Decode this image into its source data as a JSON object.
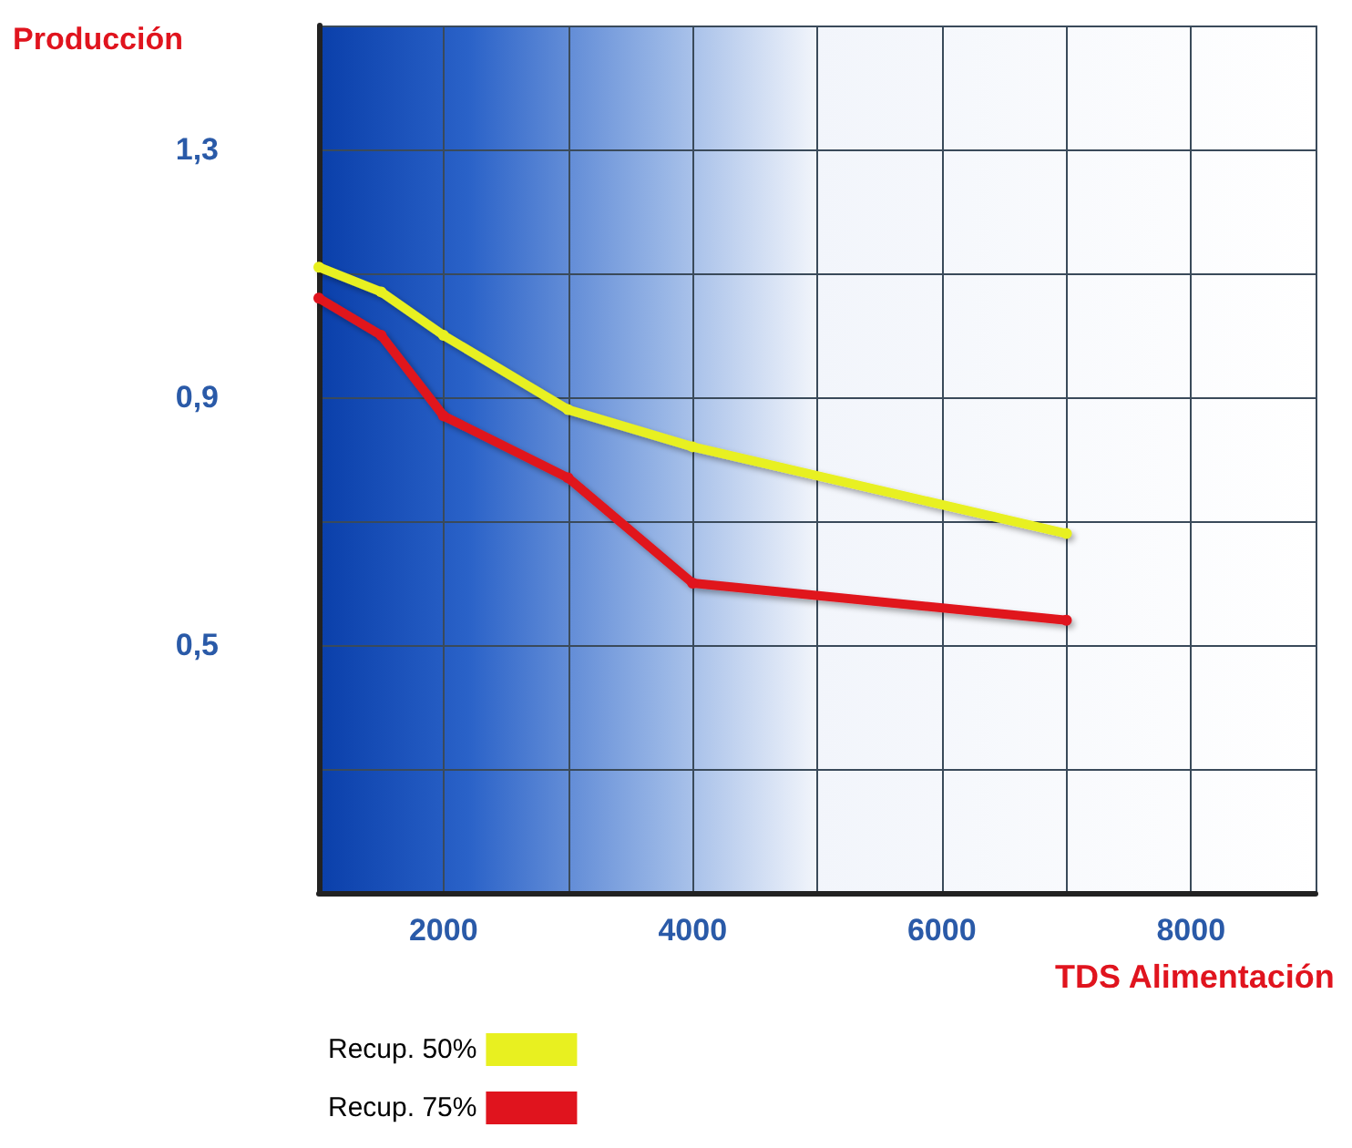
{
  "chart_data": {
    "type": "line",
    "xlabel": "TDS Alimentación",
    "ylabel": "Producción",
    "x": [
      1000,
      1500,
      2000,
      3000,
      4000,
      7000
    ],
    "series": [
      {
        "name": "Recup. 50%",
        "color": "#e8f020",
        "values": [
          1.11,
          1.07,
          1.0,
          0.88,
          0.82,
          0.68
        ]
      },
      {
        "name": "Recup. 75%",
        "color": "#e0141e",
        "values": [
          1.06,
          1.0,
          0.87,
          0.77,
          0.6,
          0.54
        ]
      }
    ],
    "xlim": [
      1000,
      9000
    ],
    "xticks": [
      {
        "value": 1000,
        "label": null
      },
      2000,
      {
        "value": 3000,
        "label": null
      },
      4000,
      {
        "value": 5000,
        "label": null
      },
      6000,
      {
        "value": 7000,
        "label": null
      },
      8000,
      {
        "value": 9000,
        "label": null
      }
    ],
    "ylim": [
      0.1,
      1.5
    ],
    "yticks": [
      {
        "value": 0.1,
        "label": null
      },
      {
        "value": 0.3,
        "label": null
      },
      {
        "value": 0.5,
        "label": "0,5"
      },
      {
        "value": 0.7,
        "label": null
      },
      {
        "value": 0.9,
        "label": "0,9"
      },
      {
        "value": 1.1,
        "label": null
      },
      {
        "value": 1.3,
        "label": "1,3"
      },
      {
        "value": 1.5,
        "label": null
      }
    ],
    "grid": true,
    "legend": "bottom left",
    "marker": "circle",
    "line_style": "solid"
  }
}
